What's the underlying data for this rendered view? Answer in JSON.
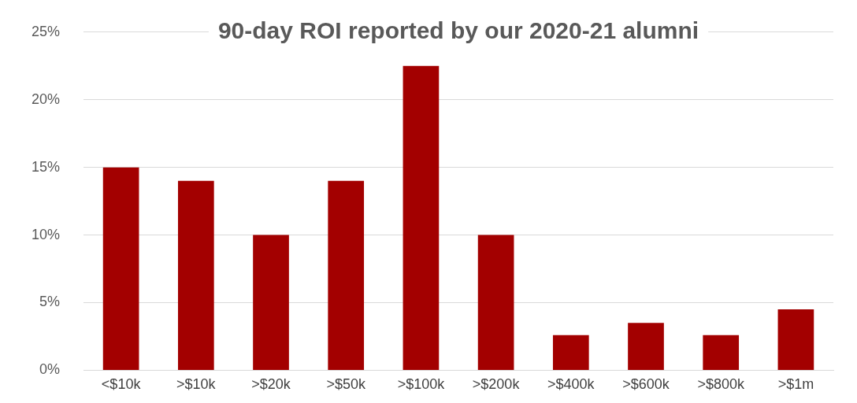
{
  "chart_data": {
    "type": "bar",
    "title": "90-day ROI reported by our 2020-21 alumni",
    "categories": [
      "<$10k",
      ">$10k",
      ">$20k",
      ">$50k",
      ">$100k",
      ">$200k",
      ">$400k",
      ">$600k",
      ">$800k",
      ">$1m"
    ],
    "values": [
      15,
      14,
      10,
      14,
      22.5,
      10,
      2.6,
      3.5,
      2.6,
      4.5
    ],
    "color": "#a30000",
    "ylim": [
      0,
      25
    ],
    "yticks": [
      {
        "value": 0,
        "label": "0%"
      },
      {
        "value": 5,
        "label": "5%"
      },
      {
        "value": 10,
        "label": "10%"
      },
      {
        "value": 15,
        "label": "15%"
      },
      {
        "value": 20,
        "label": "20%"
      },
      {
        "value": 25,
        "label": "25%"
      }
    ],
    "grid": "y",
    "legend": false
  }
}
